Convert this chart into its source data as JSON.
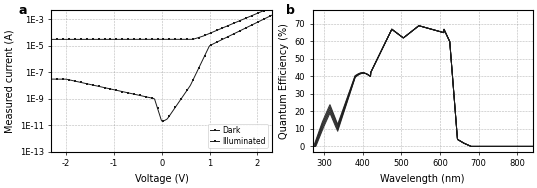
{
  "panel_a_label": "a",
  "panel_b_label": "b",
  "iv_xlabel": "Voltage (V)",
  "iv_ylabel": "Measured current (A)",
  "iv_xlim": [
    -2.3,
    2.3
  ],
  "iv_ylim": [
    1e-13,
    0.005
  ],
  "iv_xticks": [
    -2,
    -1,
    0,
    1,
    2
  ],
  "iv_legend_dark": "Dark",
  "iv_legend_illuminated": "Illuminated",
  "qe_xlabel": "Wavelength (nm)",
  "qe_ylabel": "Quantum Efficiency (%)",
  "qe_xlim": [
    270,
    840
  ],
  "qe_ylim": [
    -3,
    78
  ],
  "qe_xticks": [
    300,
    400,
    500,
    600,
    700,
    800
  ],
  "qe_yticks": [
    0,
    10,
    20,
    30,
    40,
    50,
    60,
    70
  ],
  "line_color": "#1a1a1a",
  "bg_color": "#ffffff",
  "grid_color": "#999999",
  "marker_size": 2.0
}
